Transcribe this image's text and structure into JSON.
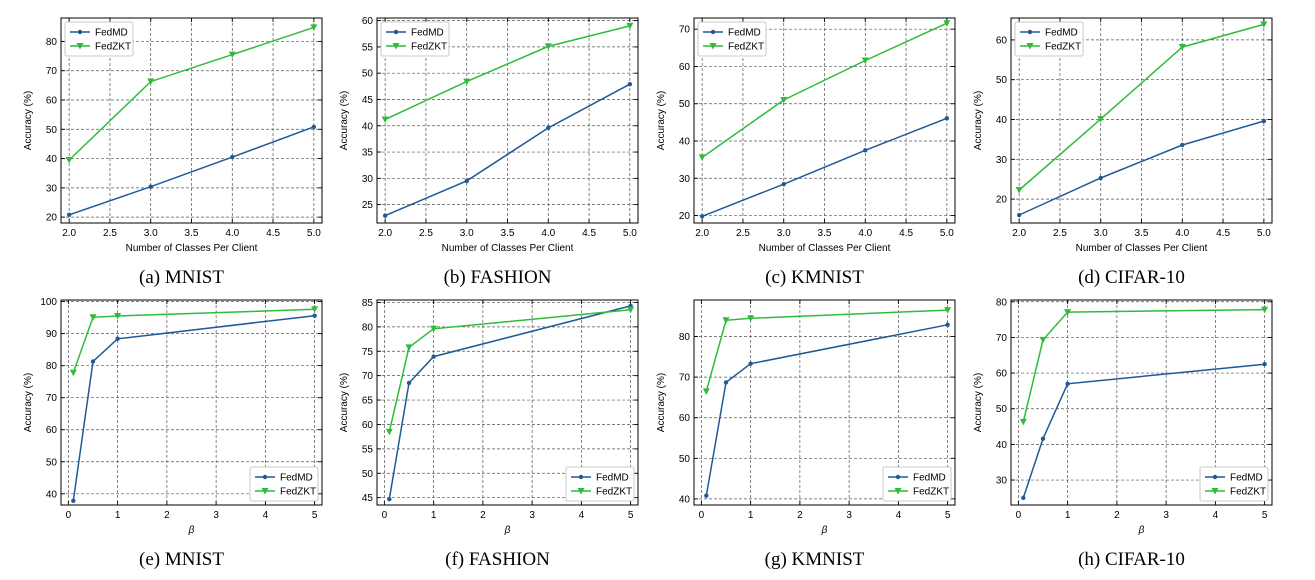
{
  "colors": {
    "fedmd": "#1f5a96",
    "fedzkt": "#2ebc3a"
  },
  "chart_data": [
    {
      "type": "line",
      "caption": "(a) MNIST",
      "xlabel": "Number of Classes Per Client",
      "ylabel": "Accuracy (%)",
      "xlim": [
        1.9,
        5.1
      ],
      "ylim": [
        18,
        88
      ],
      "xticks": [
        2.0,
        2.5,
        3.0,
        3.5,
        4.0,
        4.5,
        5.0
      ],
      "xtick_labels": [
        "2.0",
        "2.5",
        "3.0",
        "3.5",
        "4.0",
        "4.5",
        "5.0"
      ],
      "yticks": [
        20,
        30,
        40,
        50,
        60,
        70,
        80
      ],
      "ytick_labels": [
        "20",
        "30",
        "40",
        "50",
        "60",
        "70",
        "80"
      ],
      "legend": "top-left",
      "grid": true,
      "x": [
        2,
        3,
        4,
        5
      ],
      "series": [
        {
          "name": "FedMD",
          "values": [
            20.8,
            30.4,
            40.5,
            50.8
          ]
        },
        {
          "name": "FedZKT",
          "values": [
            39.5,
            66.3,
            75.5,
            84.8
          ]
        }
      ]
    },
    {
      "type": "line",
      "caption": "(b) FASHION",
      "xlabel": "Number of Classes Per Client",
      "ylabel": "Accuracy (%)",
      "xlim": [
        1.9,
        5.1
      ],
      "ylim": [
        21.5,
        60.5
      ],
      "xticks": [
        2.0,
        2.5,
        3.0,
        3.5,
        4.0,
        4.5,
        5.0
      ],
      "xtick_labels": [
        "2.0",
        "2.5",
        "3.0",
        "3.5",
        "4.0",
        "4.5",
        "5.0"
      ],
      "yticks": [
        25,
        30,
        35,
        40,
        45,
        50,
        55,
        60
      ],
      "ytick_labels": [
        "25",
        "30",
        "35",
        "40",
        "45",
        "50",
        "55",
        "60"
      ],
      "legend": "top-left",
      "grid": true,
      "x": [
        2,
        3,
        4,
        5
      ],
      "series": [
        {
          "name": "FedMD",
          "values": [
            22.9,
            29.5,
            39.6,
            47.9
          ]
        },
        {
          "name": "FedZKT",
          "values": [
            41.2,
            48.4,
            55.1,
            59.0
          ]
        }
      ]
    },
    {
      "type": "line",
      "caption": "(c) KMNIST",
      "xlabel": "Number of Classes Per Client",
      "ylabel": "Accuracy (%)",
      "xlim": [
        1.9,
        5.1
      ],
      "ylim": [
        18,
        73
      ],
      "xticks": [
        2.0,
        2.5,
        3.0,
        3.5,
        4.0,
        4.5,
        5.0
      ],
      "xtick_labels": [
        "2.0",
        "2.5",
        "3.0",
        "3.5",
        "4.0",
        "4.5",
        "5.0"
      ],
      "yticks": [
        20,
        30,
        40,
        50,
        60,
        70
      ],
      "ytick_labels": [
        "20",
        "30",
        "40",
        "50",
        "60",
        "70"
      ],
      "legend": "top-left",
      "grid": true,
      "x": [
        2,
        3,
        4,
        5
      ],
      "series": [
        {
          "name": "FedMD",
          "values": [
            19.8,
            28.4,
            37.5,
            46.1
          ]
        },
        {
          "name": "FedZKT",
          "values": [
            35.6,
            51.0,
            61.6,
            71.6
          ]
        }
      ]
    },
    {
      "type": "line",
      "caption": "(d) CIFAR-10",
      "xlabel": "Number of Classes Per Client",
      "ylabel": "Accuracy (%)",
      "xlim": [
        1.9,
        5.1
      ],
      "ylim": [
        14,
        65.5
      ],
      "xticks": [
        2.0,
        2.5,
        3.0,
        3.5,
        4.0,
        4.5,
        5.0
      ],
      "xtick_labels": [
        "2.0",
        "2.5",
        "3.0",
        "3.5",
        "4.0",
        "4.5",
        "5.0"
      ],
      "yticks": [
        20,
        30,
        40,
        50,
        60
      ],
      "ytick_labels": [
        "20",
        "30",
        "40",
        "50",
        "60"
      ],
      "legend": "top-left",
      "grid": true,
      "x": [
        2,
        3,
        4,
        5
      ],
      "series": [
        {
          "name": "FedMD",
          "values": [
            16.0,
            25.3,
            33.6,
            39.6
          ]
        },
        {
          "name": "FedZKT",
          "values": [
            22.3,
            40.1,
            58.2,
            63.9
          ]
        }
      ]
    },
    {
      "type": "line",
      "caption": "(e) MNIST",
      "xlabel": "β",
      "ylabel": "Accuracy (%)",
      "xlim": [
        -0.15,
        5.15
      ],
      "ylim": [
        36.5,
        100.5
      ],
      "xticks": [
        0,
        1,
        2,
        3,
        4,
        5
      ],
      "xtick_labels": [
        "0",
        "1",
        "2",
        "3",
        "4",
        "5"
      ],
      "yticks": [
        40,
        50,
        60,
        70,
        80,
        90,
        100
      ],
      "ytick_labels": [
        "40",
        "50",
        "60",
        "70",
        "80",
        "90",
        "100"
      ],
      "legend": "bottom-right",
      "grid": true,
      "x": [
        0.1,
        0.5,
        1,
        5
      ],
      "series": [
        {
          "name": "FedMD",
          "values": [
            37.8,
            81.3,
            88.4,
            95.6
          ]
        },
        {
          "name": "FedZKT",
          "values": [
            77.8,
            95.1,
            95.5,
            97.6
          ]
        }
      ]
    },
    {
      "type": "line",
      "caption": "(f) FASHION",
      "xlabel": "β",
      "ylabel": "Accuracy (%)",
      "xlim": [
        -0.15,
        5.15
      ],
      "ylim": [
        43.5,
        85.5
      ],
      "xticks": [
        0,
        1,
        2,
        3,
        4,
        5
      ],
      "xtick_labels": [
        "0",
        "1",
        "2",
        "3",
        "4",
        "5"
      ],
      "yticks": [
        45,
        50,
        55,
        60,
        65,
        70,
        75,
        80,
        85
      ],
      "ytick_labels": [
        "45",
        "50",
        "55",
        "60",
        "65",
        "70",
        "75",
        "80",
        "85"
      ],
      "legend": "bottom-right",
      "grid": true,
      "x": [
        0.1,
        0.5,
        1,
        5
      ],
      "series": [
        {
          "name": "FedMD",
          "values": [
            44.7,
            68.5,
            73.9,
            84.3
          ]
        },
        {
          "name": "FedZKT",
          "values": [
            58.5,
            75.8,
            79.6,
            83.5
          ]
        }
      ]
    },
    {
      "type": "line",
      "caption": "(g) KMNIST",
      "xlabel": "β",
      "ylabel": "Accuracy (%)",
      "xlim": [
        -0.15,
        5.15
      ],
      "ylim": [
        38.5,
        89
      ],
      "xticks": [
        0,
        1,
        2,
        3,
        4,
        5
      ],
      "xtick_labels": [
        "0",
        "1",
        "2",
        "3",
        "4",
        "5"
      ],
      "yticks": [
        40,
        50,
        60,
        70,
        80
      ],
      "ytick_labels": [
        "40",
        "50",
        "60",
        "70",
        "80"
      ],
      "legend": "bottom-right",
      "grid": true,
      "x": [
        0.1,
        0.5,
        1,
        5
      ],
      "series": [
        {
          "name": "FedMD",
          "values": [
            40.8,
            68.7,
            73.3,
            82.9
          ]
        },
        {
          "name": "FedZKT",
          "values": [
            66.5,
            84.0,
            84.5,
            86.5
          ]
        }
      ]
    },
    {
      "type": "line",
      "caption": "(h) CIFAR-10",
      "xlabel": "β",
      "ylabel": "Accuracy (%)",
      "xlim": [
        -0.15,
        5.15
      ],
      "ylim": [
        23,
        80.5
      ],
      "xticks": [
        0,
        1,
        2,
        3,
        4,
        5
      ],
      "xtick_labels": [
        "0",
        "1",
        "2",
        "3",
        "4",
        "5"
      ],
      "yticks": [
        30,
        40,
        50,
        60,
        70,
        80
      ],
      "ytick_labels": [
        "30",
        "40",
        "50",
        "60",
        "70",
        "80"
      ],
      "legend": "bottom-right",
      "grid": true,
      "x": [
        0.1,
        0.5,
        1,
        5
      ],
      "series": [
        {
          "name": "FedMD",
          "values": [
            25.0,
            41.6,
            57.0,
            62.5
          ]
        },
        {
          "name": "FedZKT",
          "values": [
            46.3,
            69.3,
            77.1,
            77.8
          ]
        }
      ]
    }
  ]
}
